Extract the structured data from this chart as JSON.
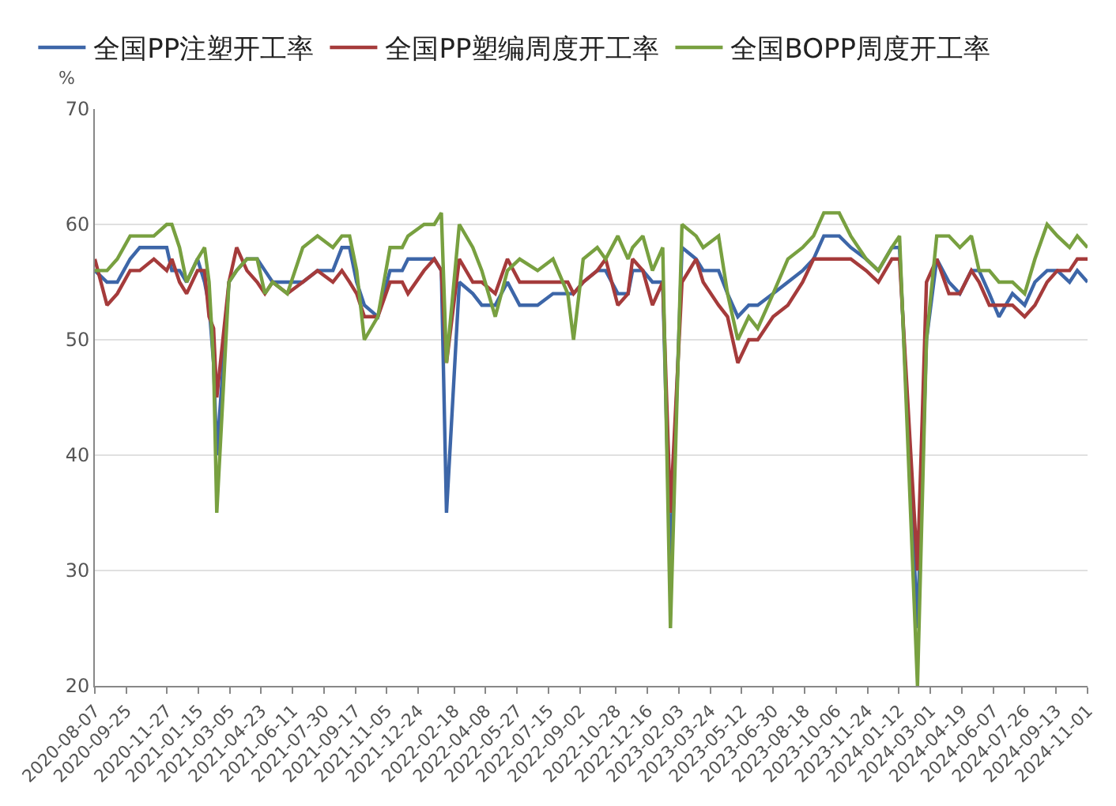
{
  "chart_data": {
    "type": "line",
    "ylabel": "%",
    "legend": "top left",
    "grid": "y",
    "marker": "none",
    "line_style": "solid",
    "ylim": [
      20,
      70
    ],
    "yticks": [
      20,
      30,
      40,
      50,
      60,
      70
    ],
    "xlim": [
      "2020-08-07",
      "2024-11-01"
    ],
    "xticks": [
      "2020-08-07",
      "2020-09-25",
      "2020-11-27",
      "2021-01-15",
      "2021-03-05",
      "2021-04-23",
      "2021-06-11",
      "2021-07-30",
      "2021-09-17",
      "2021-11-05",
      "2021-12-24",
      "2022-02-18",
      "2022-04-08",
      "2022-05-27",
      "2022-07-15",
      "2022-09-02",
      "2022-10-28",
      "2022-12-16",
      "2023-02-03",
      "2023-03-24",
      "2023-05-12",
      "2023-06-30",
      "2023-08-18",
      "2023-10-06",
      "2023-11-24",
      "2024-01-12",
      "2024-03-01",
      "2024-04-19",
      "2024-06-07",
      "2024-07-26",
      "2024-09-13",
      "2024-11-01"
    ],
    "x": [
      "2020-08-07",
      "2020-08-26",
      "2020-09-11",
      "2020-10-01",
      "2020-10-16",
      "2020-11-07",
      "2020-11-27",
      "2020-12-05",
      "2020-12-17",
      "2020-12-28",
      "2021-01-14",
      "2021-01-25",
      "2021-02-01",
      "2021-02-08",
      "2021-02-13",
      "2021-03-04",
      "2021-03-16",
      "2021-04-01",
      "2021-04-17",
      "2021-04-29",
      "2021-05-11",
      "2021-06-03",
      "2021-06-27",
      "2021-07-20",
      "2021-08-13",
      "2021-08-27",
      "2021-09-08",
      "2021-09-19",
      "2021-10-01",
      "2021-10-22",
      "2021-11-10",
      "2021-11-29",
      "2021-12-08",
      "2022-01-02",
      "2022-01-18",
      "2022-01-29",
      "2022-02-06",
      "2022-02-26",
      "2022-03-19",
      "2022-04-02",
      "2022-04-23",
      "2022-05-12",
      "2022-05-31",
      "2022-06-28",
      "2022-07-22",
      "2022-08-14",
      "2022-08-23",
      "2022-09-07",
      "2022-09-29",
      "2022-10-12",
      "2022-10-31",
      "2022-11-16",
      "2022-11-23",
      "2022-12-09",
      "2022-12-24",
      "2023-01-09",
      "2023-01-21",
      "2023-02-08",
      "2023-03-02",
      "2023-03-13",
      "2023-04-06",
      "2023-04-20",
      "2023-05-06",
      "2023-05-23",
      "2023-06-06",
      "2023-06-30",
      "2023-07-23",
      "2023-08-15",
      "2023-09-01",
      "2023-09-17",
      "2023-10-11",
      "2023-10-29",
      "2023-11-22",
      "2023-12-11",
      "2024-01-01",
      "2024-01-13",
      "2024-02-10",
      "2024-02-24",
      "2024-03-11",
      "2024-03-30",
      "2024-04-16",
      "2024-05-04",
      "2024-05-16",
      "2024-06-01",
      "2024-06-16",
      "2024-07-07",
      "2024-07-26",
      "2024-08-11",
      "2024-08-30",
      "2024-09-15",
      "2024-10-04",
      "2024-10-16",
      "2024-11-01"
    ],
    "series": [
      {
        "name": "全国PP注塑开工率",
        "color": "#3d66a8",
        "values": [
          56,
          55,
          55,
          57,
          58,
          58,
          58,
          56,
          56,
          55,
          57,
          55,
          53,
          48,
          40,
          55,
          56,
          57,
          57,
          56,
          55,
          55,
          55,
          56,
          56,
          58,
          58,
          55,
          53,
          52,
          56,
          56,
          57,
          57,
          57,
          56,
          35,
          55,
          54,
          53,
          53,
          55,
          53,
          53,
          54,
          54,
          54,
          55,
          56,
          56,
          54,
          54,
          56,
          56,
          55,
          55,
          30,
          58,
          57,
          56,
          56,
          54,
          52,
          53,
          53,
          54,
          55,
          56,
          57,
          59,
          59,
          58,
          57,
          56,
          58,
          58,
          25,
          50,
          57,
          55,
          54,
          56,
          56,
          54,
          52,
          54,
          53,
          55,
          56,
          56,
          55,
          56,
          55
        ]
      },
      {
        "name": "全国PP塑编周度开工率",
        "color": "#a53b3b",
        "values": [
          57,
          53,
          54,
          56,
          56,
          57,
          56,
          57,
          55,
          54,
          56,
          56,
          52,
          51,
          45,
          55,
          58,
          56,
          55,
          54,
          55,
          54,
          55,
          56,
          55,
          56,
          55,
          54,
          52,
          52,
          55,
          55,
          54,
          56,
          57,
          56,
          48,
          57,
          55,
          55,
          54,
          57,
          55,
          55,
          55,
          55,
          54,
          55,
          56,
          57,
          53,
          54,
          57,
          56,
          53,
          55,
          35,
          55,
          57,
          55,
          53,
          52,
          48,
          50,
          50,
          52,
          53,
          55,
          57,
          57,
          57,
          57,
          56,
          55,
          57,
          57,
          30,
          55,
          57,
          54,
          54,
          56,
          55,
          53,
          53,
          53,
          52,
          53,
          55,
          56,
          56,
          57,
          57
        ]
      },
      {
        "name": "全国BOPP周度开工率",
        "color": "#78a040",
        "values": [
          56,
          56,
          57,
          59,
          59,
          59,
          60,
          60,
          58,
          55,
          57,
          58,
          55,
          48,
          35,
          55,
          56,
          57,
          57,
          54,
          55,
          54,
          58,
          59,
          58,
          59,
          59,
          56,
          50,
          52,
          58,
          58,
          59,
          60,
          60,
          61,
          48,
          60,
          58,
          56,
          52,
          56,
          57,
          56,
          57,
          54,
          50,
          57,
          58,
          57,
          59,
          57,
          58,
          59,
          56,
          58,
          25,
          60,
          59,
          58,
          59,
          54,
          50,
          52,
          51,
          54,
          57,
          58,
          59,
          61,
          61,
          59,
          57,
          56,
          58,
          59,
          20,
          50,
          59,
          59,
          58,
          59,
          56,
          56,
          55,
          55,
          54,
          57,
          60,
          59,
          58,
          59,
          58
        ]
      }
    ]
  }
}
